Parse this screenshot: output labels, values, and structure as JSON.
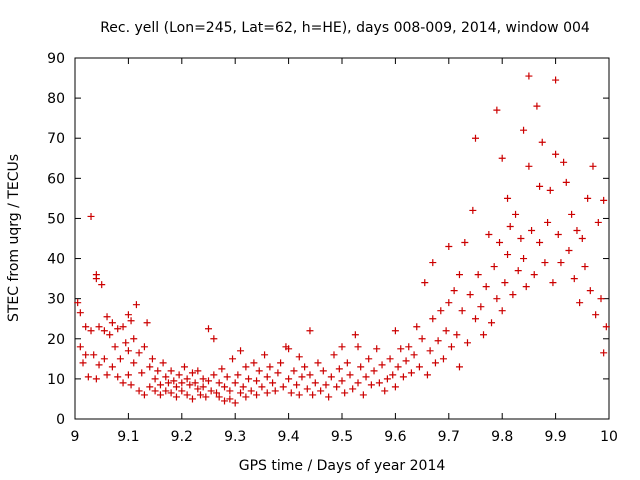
{
  "chart_data": {
    "type": "scatter",
    "title": "Rec. yell (Lon=245, Lat=62, h=HE), days 008-009, 2014, window 004",
    "xlabel": "GPS time / Days of year 2014",
    "ylabel": "STEC from uqrg / TECUs",
    "xlim": [
      9.0,
      10.0
    ],
    "ylim": [
      0,
      90
    ],
    "x_ticks": [
      "9",
      "9.1",
      "9.2",
      "9.3",
      "9.4",
      "9.5",
      "9.6",
      "9.7",
      "9.8",
      "9.9",
      "10"
    ],
    "x_tick_values": [
      9.0,
      9.1,
      9.2,
      9.3,
      9.4,
      9.5,
      9.6,
      9.7,
      9.8,
      9.9,
      10.0
    ],
    "y_ticks": [
      "0",
      "10",
      "20",
      "30",
      "40",
      "50",
      "60",
      "70",
      "80",
      "90"
    ],
    "y_tick_values": [
      0,
      10,
      20,
      30,
      40,
      50,
      60,
      70,
      80,
      90
    ],
    "grid": false,
    "legend": "none",
    "marker": "plus",
    "color": "#cc0000",
    "series": [
      {
        "name": "STEC",
        "points": [
          [
            9.005,
            29
          ],
          [
            9.01,
            26.5
          ],
          [
            9.01,
            18
          ],
          [
            9.015,
            14
          ],
          [
            9.02,
            23
          ],
          [
            9.02,
            16
          ],
          [
            9.025,
            10.5
          ],
          [
            9.03,
            50.5
          ],
          [
            9.03,
            22
          ],
          [
            9.035,
            16
          ],
          [
            9.04,
            36
          ],
          [
            9.04,
            35
          ],
          [
            9.04,
            10
          ],
          [
            9.045,
            23
          ],
          [
            9.045,
            13.5
          ],
          [
            9.05,
            33.5
          ],
          [
            9.055,
            22
          ],
          [
            9.055,
            15
          ],
          [
            9.06,
            25.5
          ],
          [
            9.06,
            11
          ],
          [
            9.065,
            21
          ],
          [
            9.07,
            24
          ],
          [
            9.07,
            13
          ],
          [
            9.075,
            18
          ],
          [
            9.08,
            22.5
          ],
          [
            9.08,
            10.5
          ],
          [
            9.085,
            15
          ],
          [
            9.09,
            23
          ],
          [
            9.09,
            9
          ],
          [
            9.095,
            19
          ],
          [
            9.1,
            26
          ],
          [
            9.1,
            17
          ],
          [
            9.1,
            11
          ],
          [
            9.105,
            24.5
          ],
          [
            9.105,
            8.5
          ],
          [
            9.11,
            20
          ],
          [
            9.11,
            14
          ],
          [
            9.115,
            28.5
          ],
          [
            9.12,
            16.5
          ],
          [
            9.12,
            7
          ],
          [
            9.125,
            11.5
          ],
          [
            9.13,
            18
          ],
          [
            9.13,
            6
          ],
          [
            9.135,
            24
          ],
          [
            9.14,
            13
          ],
          [
            9.14,
            8
          ],
          [
            9.145,
            15
          ],
          [
            9.15,
            10
          ],
          [
            9.15,
            7
          ],
          [
            9.155,
            12
          ],
          [
            9.16,
            8.5
          ],
          [
            9.16,
            6
          ],
          [
            9.165,
            14
          ],
          [
            9.17,
            10.5
          ],
          [
            9.17,
            7
          ],
          [
            9.175,
            9
          ],
          [
            9.18,
            12
          ],
          [
            9.18,
            6.5
          ],
          [
            9.185,
            9.5
          ],
          [
            9.19,
            8
          ],
          [
            9.19,
            5.5
          ],
          [
            9.195,
            11
          ],
          [
            9.2,
            9
          ],
          [
            9.2,
            7
          ],
          [
            9.205,
            13
          ],
          [
            9.21,
            10
          ],
          [
            9.21,
            6
          ],
          [
            9.215,
            8.5
          ],
          [
            9.22,
            11.5
          ],
          [
            9.22,
            5
          ],
          [
            9.225,
            9
          ],
          [
            9.23,
            7.5
          ],
          [
            9.23,
            12
          ],
          [
            9.235,
            6
          ],
          [
            9.24,
            10
          ],
          [
            9.24,
            8
          ],
          [
            9.245,
            5.5
          ],
          [
            9.25,
            22.5
          ],
          [
            9.25,
            9.5
          ],
          [
            9.255,
            7
          ],
          [
            9.26,
            20
          ],
          [
            9.26,
            11
          ],
          [
            9.265,
            6.5
          ],
          [
            9.27,
            9
          ],
          [
            9.27,
            5.5
          ],
          [
            9.275,
            12.5
          ],
          [
            9.28,
            8
          ],
          [
            9.28,
            4.5
          ],
          [
            9.285,
            10.5
          ],
          [
            9.29,
            7
          ],
          [
            9.29,
            5
          ],
          [
            9.295,
            15
          ],
          [
            9.3,
            9
          ],
          [
            9.3,
            4
          ],
          [
            9.305,
            11
          ],
          [
            9.31,
            6.5
          ],
          [
            9.31,
            17
          ],
          [
            9.315,
            8
          ],
          [
            9.32,
            13
          ],
          [
            9.32,
            5.5
          ],
          [
            9.325,
            10
          ],
          [
            9.33,
            7
          ],
          [
            9.335,
            14
          ],
          [
            9.34,
            9.5
          ],
          [
            9.34,
            6
          ],
          [
            9.345,
            12
          ],
          [
            9.35,
            8
          ],
          [
            9.355,
            16
          ],
          [
            9.36,
            10.5
          ],
          [
            9.36,
            6.5
          ],
          [
            9.365,
            13
          ],
          [
            9.37,
            9
          ],
          [
            9.375,
            7
          ],
          [
            9.38,
            11.5
          ],
          [
            9.385,
            14
          ],
          [
            9.39,
            8
          ],
          [
            9.395,
            18
          ],
          [
            9.4,
            17.5
          ],
          [
            9.4,
            10
          ],
          [
            9.405,
            6.5
          ],
          [
            9.41,
            12
          ],
          [
            9.415,
            8.5
          ],
          [
            9.42,
            15.5
          ],
          [
            9.42,
            6
          ],
          [
            9.425,
            10.5
          ],
          [
            9.43,
            13
          ],
          [
            9.435,
            7.5
          ],
          [
            9.44,
            22
          ],
          [
            9.44,
            11
          ],
          [
            9.445,
            6
          ],
          [
            9.45,
            9
          ],
          [
            9.455,
            14
          ],
          [
            9.46,
            7
          ],
          [
            9.465,
            12
          ],
          [
            9.47,
            8.5
          ],
          [
            9.475,
            5.5
          ],
          [
            9.48,
            10.5
          ],
          [
            9.485,
            16
          ],
          [
            9.49,
            8
          ],
          [
            9.495,
            12.5
          ],
          [
            9.5,
            18
          ],
          [
            9.5,
            9.5
          ],
          [
            9.505,
            6.5
          ],
          [
            9.51,
            14
          ],
          [
            9.515,
            11
          ],
          [
            9.52,
            7.5
          ],
          [
            9.525,
            21
          ],
          [
            9.53,
            18
          ],
          [
            9.53,
            9
          ],
          [
            9.535,
            13
          ],
          [
            9.54,
            6
          ],
          [
            9.545,
            10.5
          ],
          [
            9.55,
            15
          ],
          [
            9.555,
            8.5
          ],
          [
            9.56,
            12
          ],
          [
            9.565,
            17.5
          ],
          [
            9.57,
            9
          ],
          [
            9.575,
            13.5
          ],
          [
            9.58,
            7
          ],
          [
            9.585,
            10
          ],
          [
            9.59,
            15
          ],
          [
            9.595,
            11
          ],
          [
            9.6,
            22
          ],
          [
            9.6,
            8
          ],
          [
            9.605,
            13
          ],
          [
            9.61,
            17.5
          ],
          [
            9.615,
            10.5
          ],
          [
            9.62,
            14.5
          ],
          [
            9.625,
            18
          ],
          [
            9.63,
            11.5
          ],
          [
            9.635,
            16
          ],
          [
            9.64,
            23
          ],
          [
            9.645,
            13
          ],
          [
            9.65,
            20
          ],
          [
            9.655,
            34
          ],
          [
            9.66,
            11
          ],
          [
            9.665,
            17
          ],
          [
            9.67,
            39
          ],
          [
            9.67,
            25
          ],
          [
            9.675,
            14
          ],
          [
            9.68,
            19.5
          ],
          [
            9.685,
            27
          ],
          [
            9.69,
            15
          ],
          [
            9.695,
            22
          ],
          [
            9.7,
            43
          ],
          [
            9.7,
            29
          ],
          [
            9.705,
            18
          ],
          [
            9.71,
            32
          ],
          [
            9.715,
            21
          ],
          [
            9.72,
            36
          ],
          [
            9.72,
            13
          ],
          [
            9.725,
            27
          ],
          [
            9.73,
            44
          ],
          [
            9.735,
            19
          ],
          [
            9.74,
            31
          ],
          [
            9.745,
            52
          ],
          [
            9.75,
            70
          ],
          [
            9.75,
            25
          ],
          [
            9.755,
            36
          ],
          [
            9.76,
            28
          ],
          [
            9.765,
            21
          ],
          [
            9.77,
            33
          ],
          [
            9.775,
            46
          ],
          [
            9.78,
            24
          ],
          [
            9.785,
            38
          ],
          [
            9.79,
            77
          ],
          [
            9.79,
            30
          ],
          [
            9.795,
            44
          ],
          [
            9.8,
            65
          ],
          [
            9.8,
            27
          ],
          [
            9.805,
            34
          ],
          [
            9.81,
            55
          ],
          [
            9.81,
            41
          ],
          [
            9.815,
            48
          ],
          [
            9.82,
            31
          ],
          [
            9.825,
            51
          ],
          [
            9.83,
            37
          ],
          [
            9.835,
            45
          ],
          [
            9.84,
            72
          ],
          [
            9.84,
            40
          ],
          [
            9.845,
            33
          ],
          [
            9.85,
            85.5
          ],
          [
            9.85,
            63
          ],
          [
            9.855,
            47
          ],
          [
            9.86,
            36
          ],
          [
            9.865,
            78
          ],
          [
            9.87,
            58
          ],
          [
            9.87,
            44
          ],
          [
            9.875,
            69
          ],
          [
            9.88,
            39
          ],
          [
            9.885,
            49
          ],
          [
            9.89,
            57
          ],
          [
            9.895,
            34
          ],
          [
            9.9,
            84.5
          ],
          [
            9.9,
            66
          ],
          [
            9.905,
            46
          ],
          [
            9.91,
            39
          ],
          [
            9.915,
            64
          ],
          [
            9.92,
            59
          ],
          [
            9.925,
            42
          ],
          [
            9.93,
            51
          ],
          [
            9.935,
            35
          ],
          [
            9.94,
            47
          ],
          [
            9.945,
            29
          ],
          [
            9.95,
            45
          ],
          [
            9.955,
            38
          ],
          [
            9.96,
            55
          ],
          [
            9.965,
            32
          ],
          [
            9.97,
            63
          ],
          [
            9.975,
            26
          ],
          [
            9.98,
            49
          ],
          [
            9.985,
            30
          ],
          [
            9.99,
            16.5
          ],
          [
            9.99,
            54.5
          ],
          [
            9.995,
            23
          ]
        ]
      }
    ]
  }
}
